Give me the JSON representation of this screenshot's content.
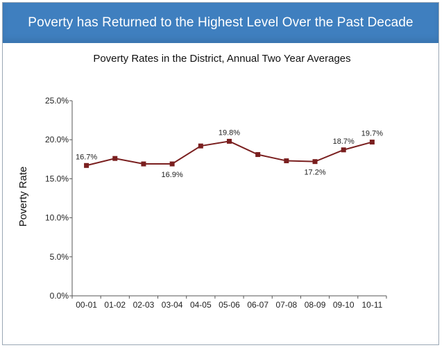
{
  "header": {
    "title": "Poverty has Returned to the Highest Level Over the Past Decade"
  },
  "colors": {
    "banner": "#3f7fbf",
    "line": "#7a1f1f",
    "marker": "#7a1f1f"
  },
  "chart_data": {
    "type": "line",
    "title": "Poverty Rates in the District, Annual Two Year Averages",
    "xlabel": "",
    "ylabel": "Poverty Rate",
    "categories": [
      "00-01",
      "01-02",
      "02-03",
      "03-04",
      "04-05",
      "05-06",
      "06-07",
      "07-08",
      "08-09",
      "09-10",
      "10-11"
    ],
    "series": [
      {
        "name": "Poverty Rate",
        "values": [
          16.7,
          17.6,
          16.9,
          16.9,
          19.2,
          19.8,
          18.1,
          17.3,
          17.2,
          18.7,
          19.7
        ]
      }
    ],
    "ylim": [
      0,
      25
    ],
    "yticks": [
      "0.0%",
      "5.0%",
      "10.0%",
      "15.0%",
      "20.0%",
      "25.0%"
    ],
    "data_labels": [
      {
        "index": 0,
        "text": "16.7%",
        "pos": "above"
      },
      {
        "index": 3,
        "text": "16.9%",
        "pos": "below"
      },
      {
        "index": 5,
        "text": "19.8%",
        "pos": "above"
      },
      {
        "index": 8,
        "text": "17.2%",
        "pos": "below"
      },
      {
        "index": 9,
        "text": "18.7%",
        "pos": "above"
      },
      {
        "index": 10,
        "text": "19.7%",
        "pos": "above"
      }
    ],
    "grid": false
  }
}
